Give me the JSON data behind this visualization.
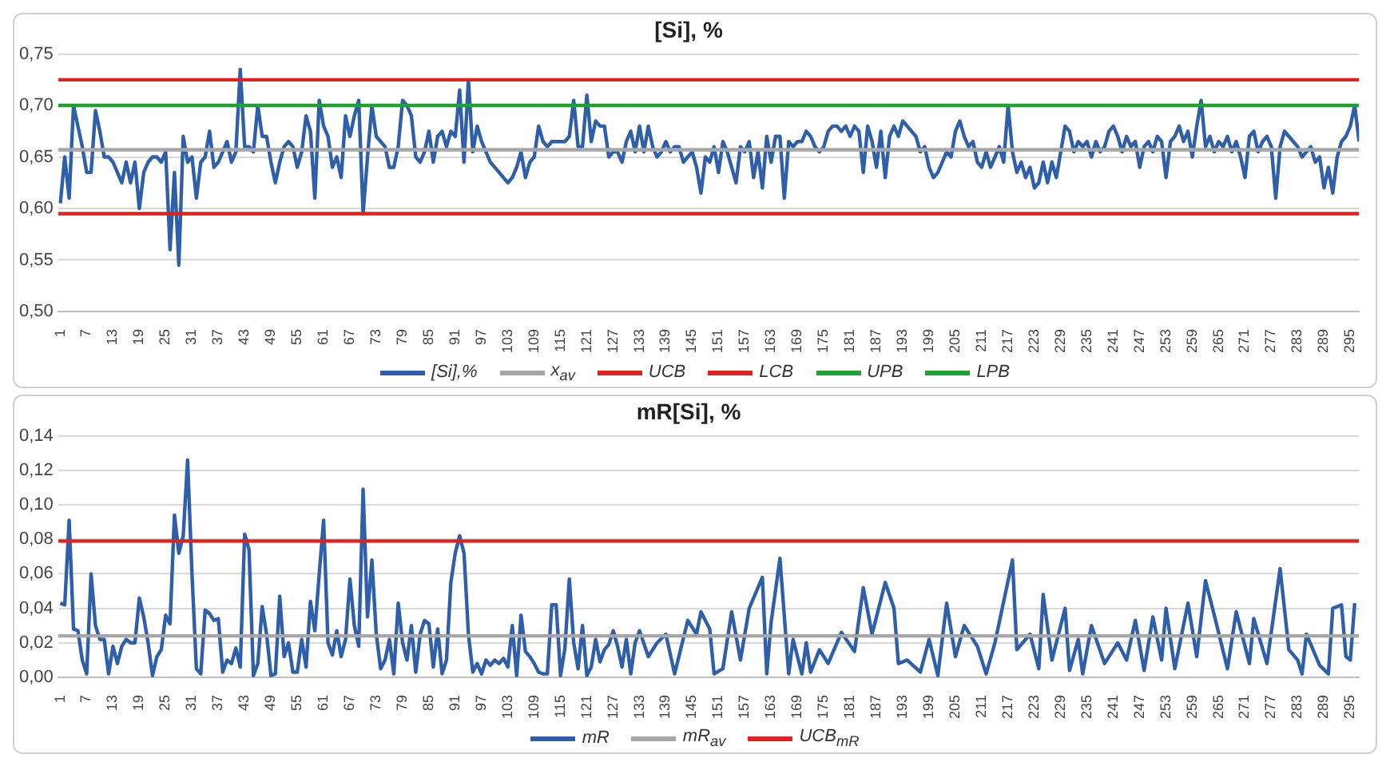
{
  "chart_data": [
    {
      "type": "line",
      "title": "[Si], %",
      "xlim": [
        0.5,
        297
      ],
      "xticks": [
        1,
        7,
        13,
        19,
        25,
        31,
        37,
        43,
        49,
        55,
        61,
        67,
        73,
        79,
        85,
        91,
        97,
        103,
        109,
        115,
        121,
        127,
        133,
        139,
        145,
        151,
        157,
        163,
        169,
        175,
        181,
        187,
        193,
        199,
        205,
        211,
        217,
        223,
        229,
        235,
        241,
        247,
        253,
        259,
        265,
        271,
        277,
        283,
        289,
        295
      ],
      "ylim": [
        0.5,
        0.75
      ],
      "yticks": [
        {
          "value": 0.5,
          "label": "0,50"
        },
        {
          "value": 0.55,
          "label": "0,55"
        },
        {
          "value": 0.6,
          "label": "0,60"
        },
        {
          "value": 0.65,
          "label": "0,65"
        },
        {
          "value": 0.7,
          "label": "0,70"
        },
        {
          "value": 0.75,
          "label": "0,75"
        }
      ],
      "grid": "y",
      "legend": "bottom",
      "marker": "none",
      "line_style": "solid",
      "series": [
        {
          "name": "[Si],%",
          "color": "#2e5fa8",
          "x": [
            1,
            2,
            3,
            4,
            5,
            6,
            7,
            8,
            9,
            10,
            11,
            12,
            13,
            14,
            15,
            16,
            17,
            18,
            19,
            20,
            21,
            22,
            23,
            24,
            25,
            26,
            27,
            28,
            29,
            30,
            31,
            32,
            33,
            34,
            35,
            36,
            37,
            38,
            39,
            40,
            41,
            42,
            43,
            44,
            45,
            46,
            47,
            48,
            49,
            50,
            51,
            52,
            53,
            54,
            55,
            56,
            57,
            58,
            59,
            60,
            61,
            62,
            63,
            64,
            65,
            66,
            67,
            68,
            69,
            70,
            71,
            72,
            73,
            74,
            75,
            76,
            77,
            78,
            79,
            80,
            81,
            82,
            83,
            84,
            85,
            86,
            87,
            88,
            89,
            90,
            91,
            92,
            93,
            94,
            95,
            96,
            97,
            98,
            99,
            100,
            101,
            102,
            103,
            104,
            105,
            106,
            107,
            108,
            109,
            110,
            111,
            112,
            113,
            114,
            115,
            116,
            117,
            118,
            119,
            120,
            121,
            122,
            123,
            124,
            125,
            126,
            127,
            128,
            129,
            130,
            131,
            132,
            133,
            134,
            135,
            136,
            137,
            138,
            139,
            140,
            141,
            142,
            143,
            144,
            145,
            146,
            147,
            148,
            149,
            150,
            151,
            152,
            153,
            154,
            155,
            156,
            157,
            158,
            159,
            160,
            161,
            162,
            163,
            164,
            165,
            166,
            167,
            168,
            169,
            170,
            171,
            172,
            173,
            174,
            175,
            176,
            177,
            178,
            179,
            180,
            181,
            182,
            183,
            184,
            185,
            186,
            187,
            188,
            189,
            190,
            191,
            192,
            193,
            194,
            195,
            196,
            197,
            198,
            199,
            200,
            201,
            202,
            203,
            204,
            205,
            206,
            207,
            208,
            209,
            210,
            211,
            212,
            213,
            214,
            215,
            216,
            217,
            218,
            219,
            220,
            221,
            222,
            223,
            224,
            225,
            226,
            227,
            228,
            229,
            230,
            231,
            232,
            233,
            234,
            235,
            236,
            237,
            238,
            239,
            240,
            241,
            242,
            243,
            244,
            245,
            246,
            247,
            248,
            249,
            250,
            251,
            252,
            253,
            254,
            255,
            256,
            257,
            258,
            259,
            260,
            261,
            262,
            263,
            264,
            265,
            266,
            267,
            268,
            269,
            270,
            271,
            272,
            273,
            274,
            275,
            276,
            277,
            278,
            279,
            280,
            281,
            282,
            283,
            284,
            285,
            286,
            287,
            288,
            289,
            290,
            291,
            292,
            293,
            294,
            295,
            296,
            297
          ],
          "values": [
            0.605,
            0.65,
            0.61,
            0.7,
            0.68,
            0.66,
            0.635,
            0.635,
            0.695,
            0.675,
            0.65,
            0.65,
            0.645,
            0.635,
            0.625,
            0.645,
            0.625,
            0.645,
            0.6,
            0.635,
            0.645,
            0.65,
            0.65,
            0.645,
            0.655,
            0.56,
            0.635,
            0.545,
            0.67,
            0.645,
            0.65,
            0.61,
            0.645,
            0.65,
            0.675,
            0.64,
            0.645,
            0.655,
            0.665,
            0.645,
            0.655,
            0.735,
            0.66,
            0.66,
            0.655,
            0.7,
            0.67,
            0.67,
            0.645,
            0.625,
            0.645,
            0.66,
            0.665,
            0.66,
            0.64,
            0.655,
            0.69,
            0.675,
            0.61,
            0.705,
            0.68,
            0.67,
            0.64,
            0.65,
            0.63,
            0.69,
            0.67,
            0.69,
            0.705,
            0.595,
            0.65,
            0.7,
            0.67,
            0.665,
            0.66,
            0.64,
            0.64,
            0.66,
            0.705,
            0.7,
            0.69,
            0.65,
            0.645,
            0.655,
            0.675,
            0.645,
            0.67,
            0.675,
            0.66,
            0.675,
            0.67,
            0.715,
            0.645,
            0.725,
            0.655,
            0.68,
            0.665,
            0.655,
            0.645,
            0.64,
            0.635,
            0.63,
            0.625,
            0.63,
            0.64,
            0.655,
            0.63,
            0.645,
            0.65,
            0.68,
            0.665,
            0.66,
            0.665,
            0.665,
            0.665,
            0.665,
            0.67,
            0.705,
            0.66,
            0.66,
            0.71,
            0.665,
            0.685,
            0.68,
            0.68,
            0.65,
            0.655,
            0.655,
            0.645,
            0.665,
            0.675,
            0.655,
            0.68,
            0.655,
            0.68,
            0.66,
            0.65,
            0.655,
            0.665,
            0.655,
            0.66,
            0.66,
            0.645,
            0.65,
            0.655,
            0.64,
            0.615,
            0.65,
            0.645,
            0.66,
            0.635,
            0.665,
            0.655,
            0.64,
            0.625,
            0.66,
            0.655,
            0.665,
            0.63,
            0.655,
            0.62,
            0.67,
            0.645,
            0.67,
            0.67,
            0.61,
            0.665,
            0.66,
            0.665,
            0.665,
            0.675,
            0.67,
            0.66,
            0.655,
            0.66,
            0.675,
            0.68,
            0.68,
            0.675,
            0.68,
            0.67,
            0.68,
            0.675,
            0.635,
            0.68,
            0.665,
            0.64,
            0.675,
            0.63,
            0.67,
            0.68,
            0.67,
            0.685,
            0.68,
            0.675,
            0.67,
            0.655,
            0.66,
            0.64,
            0.63,
            0.635,
            0.645,
            0.655,
            0.65,
            0.675,
            0.685,
            0.67,
            0.66,
            0.665,
            0.645,
            0.64,
            0.655,
            0.64,
            0.65,
            0.66,
            0.645,
            0.7,
            0.655,
            0.635,
            0.645,
            0.63,
            0.64,
            0.62,
            0.625,
            0.645,
            0.625,
            0.645,
            0.63,
            0.655,
            0.68,
            0.675,
            0.655,
            0.665,
            0.66,
            0.665,
            0.65,
            0.665,
            0.655,
            0.66,
            0.675,
            0.68,
            0.67,
            0.655,
            0.67,
            0.66,
            0.665,
            0.64,
            0.66,
            0.665,
            0.655,
            0.67,
            0.665,
            0.63,
            0.665,
            0.67,
            0.68,
            0.665,
            0.675,
            0.65,
            0.68,
            0.705,
            0.66,
            0.67,
            0.655,
            0.665,
            0.66,
            0.67,
            0.655,
            0.665,
            0.65,
            0.63,
            0.67,
            0.675,
            0.655,
            0.665,
            0.67,
            0.66,
            0.61,
            0.66,
            0.675,
            0.67,
            0.665,
            0.66,
            0.65,
            0.655,
            0.66,
            0.645,
            0.65,
            0.62,
            0.64,
            0.615,
            0.65,
            0.665,
            0.67,
            0.68,
            0.7,
            0.665
          ]
        },
        {
          "name": "x$_{av}$",
          "color": "#a6a6a6",
          "x": [
            0.5,
            297
          ],
          "values": [
            0.657,
            0.657
          ]
        },
        {
          "name": "UCB",
          "color": "#e3201b",
          "x": [
            0.5,
            297
          ],
          "values": [
            0.725,
            0.725
          ]
        },
        {
          "name": "LCB",
          "color": "#e3201b",
          "x": [
            0.5,
            297
          ],
          "values": [
            0.595,
            0.595
          ]
        },
        {
          "name": "UPB",
          "color": "#1fa12f",
          "x": [
            0.5,
            297
          ],
          "values": [
            0.7,
            0.7
          ]
        },
        {
          "name": "LPB",
          "color": "#1fa12f",
          "values": [
            null
          ]
        }
      ]
    },
    {
      "type": "line",
      "title": "mR[Si], %",
      "xlim": [
        0.5,
        297
      ],
      "xticks": [
        1,
        7,
        13,
        19,
        25,
        31,
        37,
        43,
        49,
        55,
        61,
        67,
        73,
        79,
        85,
        91,
        97,
        103,
        109,
        115,
        121,
        127,
        133,
        139,
        145,
        151,
        157,
        163,
        169,
        175,
        181,
        187,
        193,
        199,
        205,
        211,
        217,
        223,
        229,
        235,
        241,
        247,
        253,
        259,
        265,
        271,
        277,
        283,
        289,
        295
      ],
      "ylim": [
        0,
        0.14
      ],
      "yticks": [
        {
          "value": 0,
          "label": "0,00"
        },
        {
          "value": 0.02,
          "label": "0,02"
        },
        {
          "value": 0.04,
          "label": "0,04"
        },
        {
          "value": 0.06,
          "label": "0,06"
        },
        {
          "value": 0.08,
          "label": "0,08"
        },
        {
          "value": 0.1,
          "label": "0,10"
        },
        {
          "value": 0.12,
          "label": "0,12"
        },
        {
          "value": 0.14,
          "label": "0,14"
        }
      ],
      "grid": "y",
      "legend": "bottom",
      "marker": "none",
      "line_style": "solid",
      "series": [
        {
          "name": "mR",
          "color": "#2e5fa8",
          "x": [
            1,
            2,
            3,
            4,
            5,
            6,
            7,
            8,
            9,
            10,
            11,
            12,
            13,
            14,
            15,
            16,
            17,
            18,
            19,
            20,
            21,
            22,
            23,
            24,
            25,
            26,
            27,
            28,
            29,
            30,
            31,
            32,
            33,
            34,
            35,
            36,
            37,
            38,
            39,
            40,
            41,
            42,
            43,
            44,
            45,
            46,
            47,
            48,
            49,
            50,
            51,
            52,
            53,
            54,
            55,
            56,
            57,
            58,
            59,
            60,
            61,
            62,
            63,
            64,
            65,
            66,
            67,
            68,
            69,
            70,
            71,
            72,
            73,
            74,
            75,
            76,
            77,
            78,
            79,
            80,
            81,
            82,
            83,
            84,
            85,
            86,
            87,
            88,
            89,
            90,
            91,
            92,
            93,
            94,
            95,
            96,
            97,
            98,
            99,
            100,
            101,
            102,
            103,
            104,
            105,
            106,
            107,
            108,
            109,
            110,
            111,
            112,
            113,
            114,
            115,
            116,
            117,
            118,
            119,
            120,
            121,
            122,
            123,
            124,
            125,
            126,
            127,
            128,
            129,
            130,
            131,
            132,
            133,
            135,
            137,
            139,
            141,
            144,
            146,
            147,
            149,
            150,
            152,
            154,
            156,
            158,
            161,
            162,
            163,
            165,
            167,
            168,
            170,
            171,
            172,
            174,
            176,
            179,
            182,
            184,
            186,
            189,
            191,
            192,
            194,
            197,
            199,
            201,
            203,
            205,
            207,
            210,
            212,
            214,
            218,
            219,
            222,
            224,
            225,
            227,
            230,
            231,
            233,
            234,
            236,
            239,
            242,
            244,
            246,
            248,
            250,
            252,
            253,
            255,
            258,
            260,
            262,
            264,
            267,
            269,
            272,
            273,
            276,
            279,
            281,
            283,
            284,
            285,
            288,
            290,
            291,
            293,
            294,
            295,
            296
          ],
          "values": [
            0.043,
            0.042,
            0.091,
            0.028,
            0.027,
            0.01,
            0.002,
            0.06,
            0.03,
            0.022,
            0.022,
            0.002,
            0.018,
            0.008,
            0.018,
            0.022,
            0.02,
            0.02,
            0.046,
            0.035,
            0.02,
            0.001,
            0.012,
            0.016,
            0.036,
            0.031,
            0.094,
            0.072,
            0.082,
            0.126,
            0.06,
            0.005,
            0.002,
            0.039,
            0.037,
            0.033,
            0.034,
            0.003,
            0.01,
            0.008,
            0.017,
            0.006,
            0.083,
            0.074,
            0.001,
            0.008,
            0.041,
            0.025,
            0.001,
            0.002,
            0.047,
            0.012,
            0.02,
            0.003,
            0.003,
            0.022,
            0.006,
            0.044,
            0.027,
            0.06,
            0.091,
            0.02,
            0.013,
            0.027,
            0.012,
            0.022,
            0.057,
            0.03,
            0.018,
            0.109,
            0.035,
            0.068,
            0.025,
            0.005,
            0.01,
            0.022,
            0.002,
            0.043,
            0.02,
            0.01,
            0.03,
            0.003,
            0.025,
            0.033,
            0.031,
            0.006,
            0.028,
            0.002,
            0.01,
            0.055,
            0.072,
            0.082,
            0.072,
            0.025,
            0.003,
            0.008,
            0.002,
            0.01,
            0.007,
            0.01,
            0.008,
            0.011,
            0.006,
            0.03,
            0.001,
            0.036,
            0.015,
            0.012,
            0.008,
            0.003,
            0.002,
            0.002,
            0.042,
            0.042,
            0.001,
            0.017,
            0.057,
            0.02,
            0.005,
            0.03,
            0.001,
            0.006,
            0.022,
            0.009,
            0.016,
            0.019,
            0.027,
            0.018,
            0.006,
            0.022,
            0.002,
            0.02,
            0.027,
            0.012,
            0.02,
            0.025,
            0.002,
            0.033,
            0.025,
            0.038,
            0.028,
            0.002,
            0.005,
            0.038,
            0.01,
            0.04,
            0.058,
            0.002,
            0.032,
            0.069,
            0.002,
            0.022,
            0.002,
            0.02,
            0.003,
            0.016,
            0.008,
            0.026,
            0.015,
            0.052,
            0.025,
            0.055,
            0.04,
            0.008,
            0.01,
            0.003,
            0.022,
            0.001,
            0.043,
            0.012,
            0.03,
            0.018,
            0.002,
            0.02,
            0.068,
            0.016,
            0.025,
            0.005,
            0.048,
            0.01,
            0.04,
            0.004,
            0.022,
            0.002,
            0.03,
            0.008,
            0.02,
            0.01,
            0.033,
            0.004,
            0.035,
            0.01,
            0.04,
            0.005,
            0.043,
            0.012,
            0.056,
            0.036,
            0.005,
            0.038,
            0.008,
            0.034,
            0.008,
            0.063,
            0.016,
            0.01,
            0.002,
            0.025,
            0.007,
            0.002,
            0.04,
            0.042,
            0.012,
            0.01,
            0.043
          ]
        },
        {
          "name": "mR$_{av}$",
          "color": "#a6a6a6",
          "x": [
            0.5,
            297
          ],
          "values": [
            0.024,
            0.024
          ]
        },
        {
          "name": "UCB$_{mR}$",
          "color": "#e3201b",
          "x": [
            0.5,
            297
          ],
          "values": [
            0.079,
            0.079
          ]
        }
      ]
    }
  ]
}
